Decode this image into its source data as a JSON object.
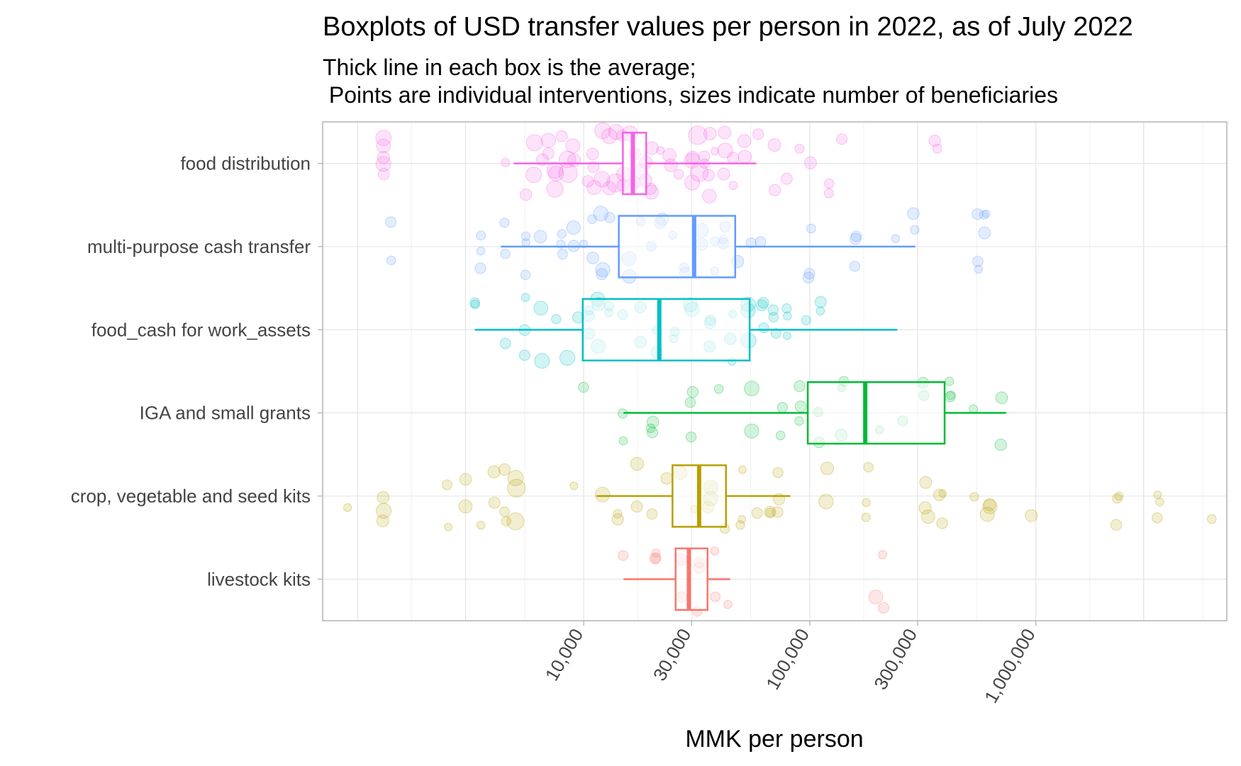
{
  "chart_data": {
    "type": "boxplot",
    "title": "Boxplots of USD transfer values per person in 2022, as of July 2022",
    "subtitle_line1": "Thick line in each box is the average;",
    "subtitle_line2": " Points are individual interventions, sizes indicate number of beneficiaries",
    "xlabel": "MMK per person",
    "x_scale": "log10",
    "xlim": [
      700,
      7000000
    ],
    "x_ticks": [
      10000,
      30000,
      100000,
      300000,
      1000000
    ],
    "x_tick_labels": [
      "10,000",
      "30,000",
      "100,000",
      "300,000",
      "1,000,000"
    ],
    "grid": true,
    "legend": "none",
    "categories": [
      {
        "name": "food distribution",
        "color": "#F564E3",
        "whisker_low": 4900,
        "q1": 14900,
        "median": 16500,
        "mean": 17000,
        "q3": 18900,
        "whisker_high": 58000,
        "points": [
          [
            1300,
            3
          ],
          [
            1300,
            2
          ],
          [
            4500,
            1
          ],
          [
            5500,
            2
          ],
          [
            6000,
            3
          ],
          [
            6500,
            2
          ],
          [
            7000,
            2
          ],
          [
            7500,
            3
          ],
          [
            8000,
            2
          ],
          [
            8500,
            3
          ],
          [
            9000,
            2
          ],
          [
            10500,
            1
          ],
          [
            11000,
            2
          ],
          [
            12000,
            3
          ],
          [
            13000,
            2
          ],
          [
            14000,
            3
          ],
          [
            15000,
            2
          ],
          [
            16000,
            3
          ],
          [
            17000,
            2
          ],
          [
            18000,
            3
          ],
          [
            19000,
            2
          ],
          [
            20000,
            2
          ],
          [
            22000,
            1
          ],
          [
            24000,
            2
          ],
          [
            26000,
            1
          ],
          [
            30000,
            2
          ],
          [
            32000,
            3
          ],
          [
            34000,
            1
          ],
          [
            36000,
            2
          ],
          [
            38000,
            1
          ],
          [
            42000,
            2
          ],
          [
            46000,
            1
          ],
          [
            52000,
            2
          ],
          [
            60000,
            1
          ],
          [
            70000,
            2
          ],
          [
            80000,
            1
          ],
          [
            90000,
            1
          ],
          [
            100000,
            2
          ],
          [
            120000,
            1
          ],
          [
            140000,
            1
          ],
          [
            360000,
            1
          ]
        ]
      },
      {
        "name": "multi-purpose cash transfer",
        "color": "#619CFF",
        "whisker_low": 4300,
        "q1": 14300,
        "median": 30800,
        "mean": 31500,
        "q3": 46800,
        "whisker_high": 293000,
        "points": [
          [
            1400,
            1
          ],
          [
            3500,
            1
          ],
          [
            4500,
            1
          ],
          [
            5500,
            1
          ],
          [
            6500,
            2
          ],
          [
            8000,
            1
          ],
          [
            9000,
            2
          ],
          [
            10000,
            1
          ],
          [
            11000,
            1
          ],
          [
            12000,
            2
          ],
          [
            13000,
            1
          ],
          [
            16000,
            2
          ],
          [
            18000,
            1
          ],
          [
            20000,
            1
          ],
          [
            22000,
            2
          ],
          [
            25000,
            1
          ],
          [
            28000,
            1
          ],
          [
            33000,
            2
          ],
          [
            38000,
            1
          ],
          [
            42000,
            1
          ],
          [
            48000,
            2
          ],
          [
            55000,
            1
          ],
          [
            60000,
            1
          ],
          [
            100000,
            1
          ],
          [
            160000,
            1
          ],
          [
            240000,
            1
          ],
          [
            290000,
            1
          ],
          [
            560000,
            1
          ],
          [
            600000,
            1
          ]
        ]
      },
      {
        "name": "food_cash for work_assets",
        "color": "#00BFC4",
        "whisker_low": 3300,
        "q1": 9900,
        "median": 21600,
        "mean": 22000,
        "q3": 54200,
        "whisker_high": 244000,
        "points": [
          [
            3300,
            1
          ],
          [
            4500,
            1
          ],
          [
            5500,
            1
          ],
          [
            6500,
            2
          ],
          [
            7500,
            1
          ],
          [
            8500,
            2
          ],
          [
            9500,
            1
          ],
          [
            10500,
            1
          ],
          [
            11500,
            2
          ],
          [
            13000,
            1
          ],
          [
            15000,
            1
          ],
          [
            18000,
            2
          ],
          [
            21000,
            1
          ],
          [
            25000,
            1
          ],
          [
            30000,
            2
          ],
          [
            36000,
            1
          ],
          [
            45000,
            1
          ],
          [
            54000,
            2
          ],
          [
            62000,
            1
          ],
          [
            70000,
            1
          ],
          [
            80000,
            1
          ],
          [
            95000,
            1
          ],
          [
            110000,
            1
          ]
        ]
      },
      {
        "name": "IGA and small grants",
        "color": "#00BA38",
        "whisker_low": 15000,
        "q1": 98000,
        "median": 176000,
        "mean": 180000,
        "q3": 395000,
        "whisker_high": 740000,
        "points": [
          [
            10000,
            1
          ],
          [
            15000,
            1
          ],
          [
            20000,
            1
          ],
          [
            30000,
            1
          ],
          [
            40000,
            1
          ],
          [
            55000,
            2
          ],
          [
            75000,
            1
          ],
          [
            90000,
            1
          ],
          [
            110000,
            1
          ],
          [
            140000,
            1
          ],
          [
            200000,
            1
          ],
          [
            260000,
            1
          ],
          [
            320000,
            1
          ],
          [
            420000,
            1
          ],
          [
            520000,
            1
          ],
          [
            700000,
            1
          ]
        ]
      },
      {
        "name": "crop, vegetable and seed kits",
        "color": "#B79F00",
        "whisker_low": 11400,
        "q1": 24700,
        "median": 32400,
        "mean": 33000,
        "q3": 42600,
        "whisker_high": 82000,
        "points": [
          [
            900,
            1
          ],
          [
            1300,
            2
          ],
          [
            2500,
            1
          ],
          [
            3000,
            2
          ],
          [
            3500,
            1
          ],
          [
            4000,
            2
          ],
          [
            4500,
            1
          ],
          [
            5000,
            3
          ],
          [
            9000,
            1
          ],
          [
            12000,
            2
          ],
          [
            14000,
            1
          ],
          [
            17000,
            2
          ],
          [
            20000,
            1
          ],
          [
            23000,
            1
          ],
          [
            27000,
            2
          ],
          [
            31000,
            1
          ],
          [
            36000,
            2
          ],
          [
            42000,
            1
          ],
          [
            50000,
            1
          ],
          [
            58000,
            1
          ],
          [
            66000,
            1
          ],
          [
            73000,
            1
          ],
          [
            120000,
            2
          ],
          [
            180000,
            1
          ],
          [
            330000,
            2
          ],
          [
            380000,
            1
          ],
          [
            540000,
            1
          ],
          [
            620000,
            2
          ],
          [
            960000,
            2
          ],
          [
            2300000,
            1
          ],
          [
            3500000,
            1
          ],
          [
            6100000,
            1
          ]
        ]
      },
      {
        "name": "livestock kits",
        "color": "#F8766D",
        "whisker_low": 15000,
        "q1": 25500,
        "median": 29200,
        "mean": 29500,
        "q3": 35300,
        "whisker_high": 44500,
        "points": [
          [
            15000,
            1
          ],
          [
            21000,
            1
          ],
          [
            27000,
            1
          ],
          [
            32000,
            1
          ],
          [
            38000,
            1
          ],
          [
            44000,
            1
          ],
          [
            198000,
            2
          ],
          [
            210000,
            1
          ]
        ]
      }
    ]
  }
}
